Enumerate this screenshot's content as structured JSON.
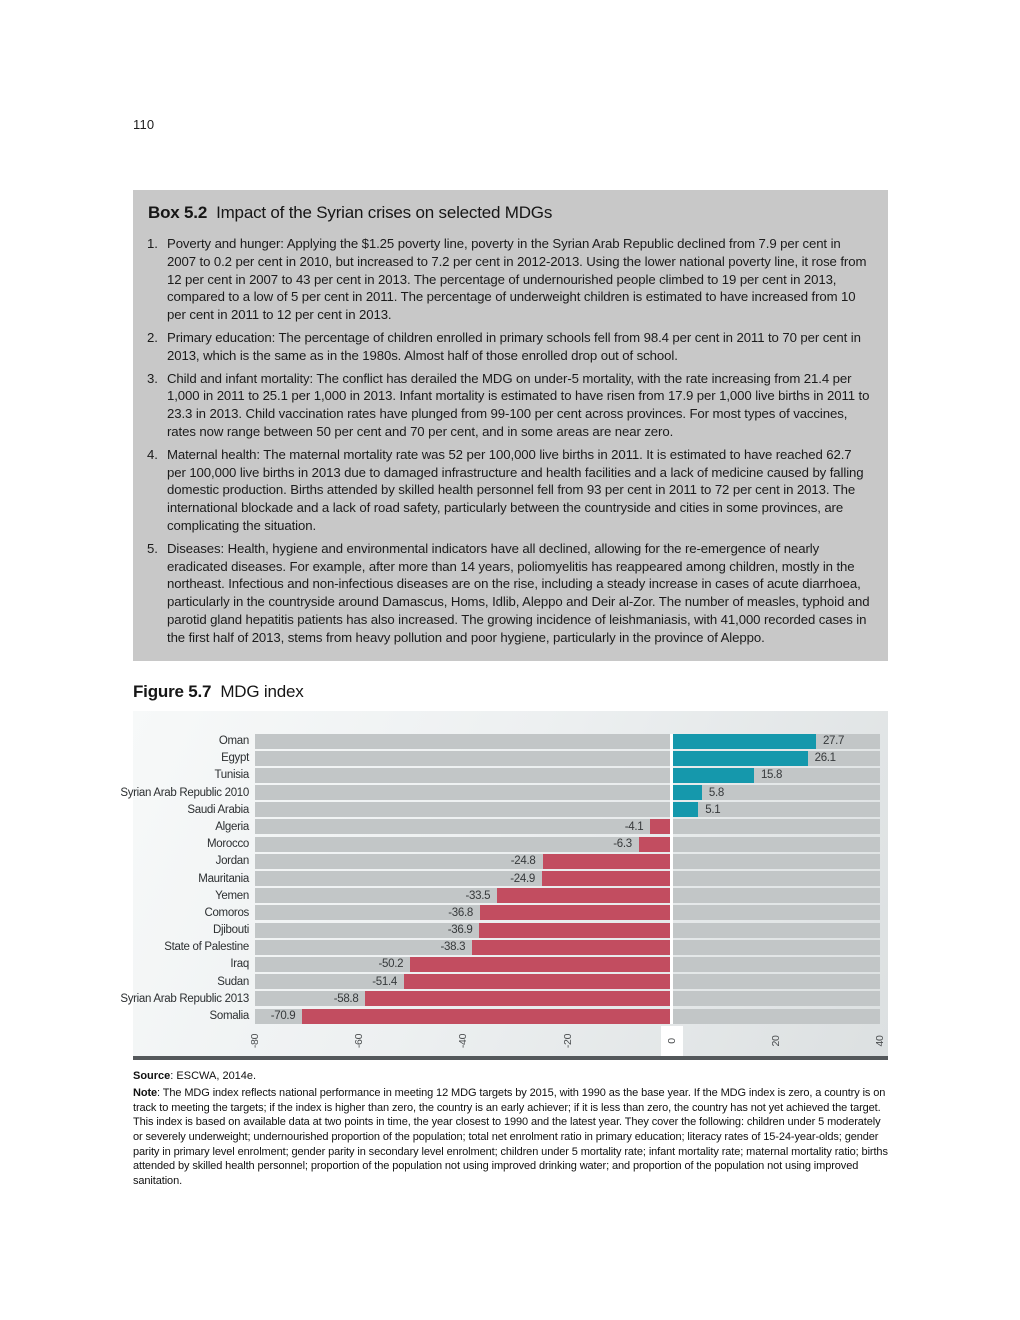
{
  "page": {
    "number": "110"
  },
  "box": {
    "label": "Box 5.2",
    "title": "Impact of the Syrian crises on selected MDGs",
    "items": [
      {
        "num": "1.",
        "text": "Poverty and hunger: Applying the $1.25 poverty line, poverty in the Syrian Arab Republic declined from 7.9 per cent in 2007 to 0.2 per cent in 2010, but increased to 7.2 per cent in 2012-2013. Using the lower national poverty line, it rose from 12 per cent in 2007 to 43 per cent in 2013. The percentage of undernourished people climbed to 19 per cent in 2013, compared to a low of 5 per cent in 2011. The percentage of underweight children is estimated to have increased from 10 per cent in 2011 to 12 per cent in 2013."
      },
      {
        "num": "2.",
        "text": "Primary education: The percentage of children enrolled in primary schools fell from 98.4 per cent in 2011 to 70 per cent in 2013, which is the same as in the 1980s. Almost half of those enrolled drop out of school."
      },
      {
        "num": "3.",
        "text": "Child and infant mortality: The conflict has derailed the MDG on under-5 mortality, with the rate increasing from 21.4 per 1,000 in 2011 to 25.1 per 1,000 in 2013. Infant mortality is estimated to have risen from 17.9 per 1,000 live births in 2011 to 23.3 in 2013. Child vaccination rates have plunged from 99-100 per cent across provinces. For most types of vaccines, rates now range between 50 per cent and 70 per cent, and in some areas are near zero."
      },
      {
        "num": "4.",
        "text": "Maternal health: The maternal mortality rate was 52 per 100,000 live births in 2011. It is estimated to have reached 62.7 per 100,000 live births in 2013 due to damaged infrastructure and health facilities and a lack of medicine caused by falling domestic production. Births attended by skilled health personnel fell from 93 per cent in 2011 to 72 per cent in 2013. The international blockade and a lack of road safety, particularly between the countryside and cities in some provinces, are complicating the situation."
      },
      {
        "num": "5.",
        "text": "Diseases: Health, hygiene and environmental indicators have all declined, allowing for the re-emergence of nearly eradicated diseases. For example, after more than 14 years, poliomyelitis has reappeared among children, mostly in the northeast. Infectious and non-infectious diseases are on the rise, including a steady increase in cases of acute diarrhoea, particularly in the countryside around Damascus, Homs, Idlib, Aleppo and Deir al-Zor. The number of measles, typhoid and parotid gland hepatitis patients has also increased. The growing incidence of leishmaniasis, with 41,000 recorded cases in the first half of 2013, stems from heavy pollution and poor hygiene, particularly in the province of Aleppo."
      }
    ]
  },
  "figure": {
    "label": "Figure 5.7",
    "title": "MDG index"
  },
  "chart_data": {
    "type": "bar",
    "orientation": "horizontal",
    "title": "MDG index",
    "categories": [
      "Oman",
      "Egypt",
      "Tunisia",
      "Syrian Arab Republic 2010",
      "Saudi Arabia",
      "Algeria",
      "Morocco",
      "Jordan",
      "Mauritania",
      "Yemen",
      "Comoros",
      "Djibouti",
      "State of Palestine",
      "Iraq",
      "Sudan",
      "Syrian Arab Republic 2013",
      "Somalia"
    ],
    "values": [
      27.7,
      26.1,
      15.8,
      5.8,
      5.1,
      -4.1,
      -6.3,
      -24.8,
      -24.9,
      -33.5,
      -36.8,
      -36.9,
      -38.3,
      -50.2,
      -51.4,
      -58.8,
      -70.9
    ],
    "xlabel": "",
    "ylabel": "",
    "xlim": [
      -80,
      40
    ],
    "xticks": [
      -80,
      -60,
      -40,
      -20,
      0,
      20,
      40
    ],
    "grid": false,
    "legend": "none",
    "positive_color": "#1598ac",
    "negative_color": "#c24d60",
    "track_color": "#c2c6c7"
  },
  "source": {
    "label": "Source",
    "text": ": ESCWA, 2014e."
  },
  "note": {
    "label": "Note",
    "text": ": The MDG index reflects national performance in meeting 12 MDG targets by 2015, with 1990 as the base year. If the MDG index is zero, a country is on track to meeting the targets; if the index is higher than zero, the country is an early achiever; if it is less than zero, the country has not yet achieved the target. This index is based on available data at two points in time, the year closest to 1990 and the latest year. They cover the following: children under 5 moderately or severely underweight; undernourished proportion of the population; total net enrolment ratio in primary education; literacy rates of 15-24-year-olds; gender parity in primary level enrolment; gender parity in secondary level enrolment; children under 5 mortality rate; infant mortality rate; maternal mortality ratio; births attended by skilled health personnel; proportion of the population not using improved drinking water; and proportion of the population not using improved sanitation."
  }
}
